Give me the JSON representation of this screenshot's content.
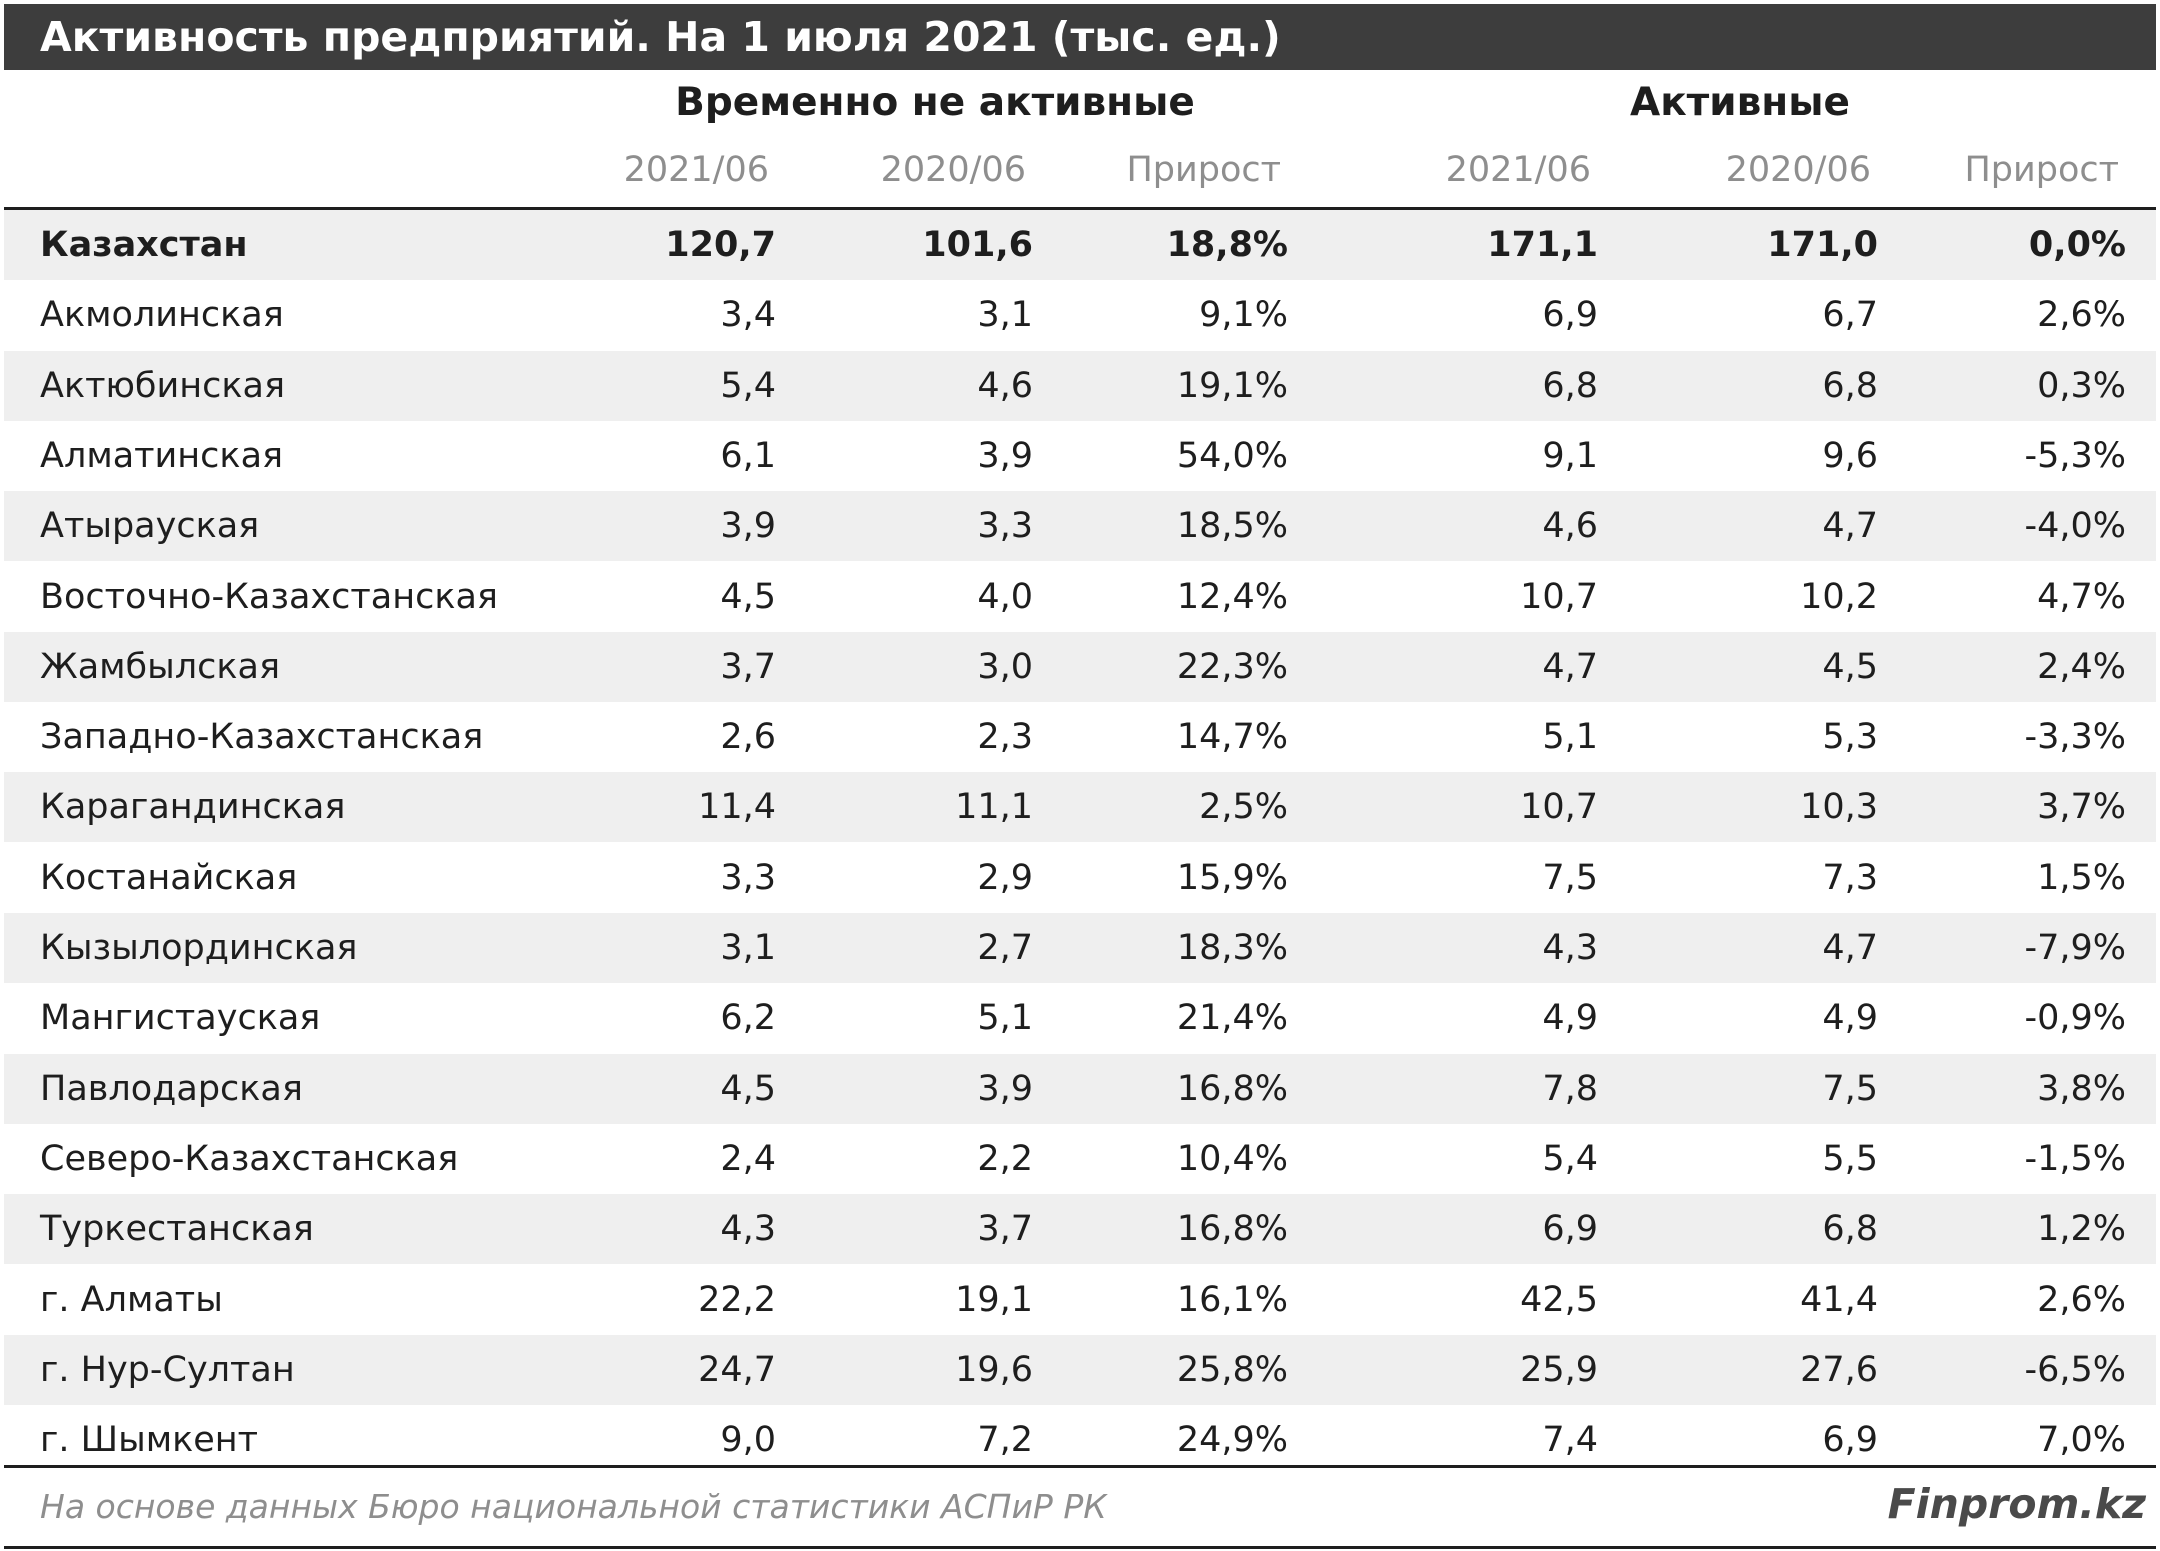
{
  "chart_data": {
    "type": "table",
    "title": "Активность предприятий. На 1 июля 2021 (тыс. ед.)",
    "groups": [
      "Временно не активные",
      "Активные"
    ],
    "columns": [
      "2021/06",
      "2020/06",
      "Прирост",
      "2021/06",
      "2020/06",
      "Прирост"
    ],
    "rows": [
      {
        "name": "Казахстан",
        "values": [
          "120,7",
          "101,6",
          "18,8%",
          "171,1",
          "171,0",
          "0,0%"
        ]
      },
      {
        "name": "Акмолинская",
        "values": [
          "3,4",
          "3,1",
          "9,1%",
          "6,9",
          "6,7",
          "2,6%"
        ]
      },
      {
        "name": "Актюбинская",
        "values": [
          "5,4",
          "4,6",
          "19,1%",
          "6,8",
          "6,8",
          "0,3%"
        ]
      },
      {
        "name": "Алматинская",
        "values": [
          "6,1",
          "3,9",
          "54,0%",
          "9,1",
          "9,6",
          "-5,3%"
        ]
      },
      {
        "name": "Атырауская",
        "values": [
          "3,9",
          "3,3",
          "18,5%",
          "4,6",
          "4,7",
          "-4,0%"
        ]
      },
      {
        "name": "Восточно-Казахстанская",
        "values": [
          "4,5",
          "4,0",
          "12,4%",
          "10,7",
          "10,2",
          "4,7%"
        ]
      },
      {
        "name": "Жамбылская",
        "values": [
          "3,7",
          "3,0",
          "22,3%",
          "4,7",
          "4,5",
          "2,4%"
        ]
      },
      {
        "name": "Западно-Казахстанская",
        "values": [
          "2,6",
          "2,3",
          "14,7%",
          "5,1",
          "5,3",
          "-3,3%"
        ]
      },
      {
        "name": "Карагандинская",
        "values": [
          "11,4",
          "11,1",
          "2,5%",
          "10,7",
          "10,3",
          "3,7%"
        ]
      },
      {
        "name": "Костанайская",
        "values": [
          "3,3",
          "2,9",
          "15,9%",
          "7,5",
          "7,3",
          "1,5%"
        ]
      },
      {
        "name": "Кызылординская",
        "values": [
          "3,1",
          "2,7",
          "18,3%",
          "4,3",
          "4,7",
          "-7,9%"
        ]
      },
      {
        "name": "Мангистауская",
        "values": [
          "6,2",
          "5,1",
          "21,4%",
          "4,9",
          "4,9",
          "-0,9%"
        ]
      },
      {
        "name": "Павлодарская",
        "values": [
          "4,5",
          "3,9",
          "16,8%",
          "7,8",
          "7,5",
          "3,8%"
        ]
      },
      {
        "name": "Северо-Казахстанская",
        "values": [
          "2,4",
          "2,2",
          "10,4%",
          "5,4",
          "5,5",
          "-1,5%"
        ]
      },
      {
        "name": "Туркестанская",
        "values": [
          "4,3",
          "3,7",
          "16,8%",
          "6,9",
          "6,8",
          "1,2%"
        ]
      },
      {
        "name": "г. Алматы",
        "values": [
          "22,2",
          "19,1",
          "16,1%",
          "42,5",
          "41,4",
          "2,6%"
        ]
      },
      {
        "name": "г. Нур-Султан",
        "values": [
          "24,7",
          "19,6",
          "25,8%",
          "25,9",
          "27,6",
          "-6,5%"
        ]
      },
      {
        "name": "г. Шымкент",
        "values": [
          "9,0",
          "7,2",
          "24,9%",
          "7,4",
          "6,9",
          "7,0%"
        ]
      }
    ],
    "source": "На основе данных Бюро национальной статистики АСПиР РК",
    "brand": "Finprom.kz"
  },
  "colors": {
    "title_bg": "#3d3d3d",
    "title_text": "#ffffff",
    "row_shade": "#efefef",
    "subheader_text": "#8e8e8e",
    "rule": "#1e1e1e"
  }
}
